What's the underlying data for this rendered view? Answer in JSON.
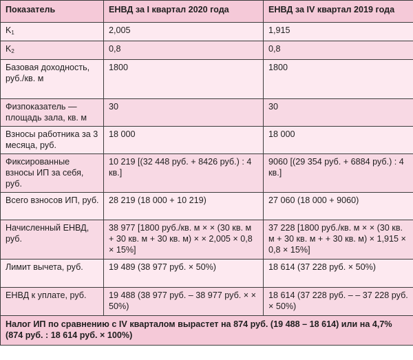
{
  "header": {
    "col1": "Показатель",
    "col2": "ЕНВД за I квартал 2020 года",
    "col3": "ЕНВД за IV квартал 2019 года"
  },
  "rows": [
    {
      "label": "K",
      "label_sub": "1",
      "q1_2020": "2,005",
      "q4_2019": "1,915"
    },
    {
      "label": "K",
      "label_sub": "2",
      "q1_2020": "0,8",
      "q4_2019": "0,8"
    },
    {
      "label": "Базовая доходность, руб./кв. м",
      "q1_2020": "1800",
      "q4_2019": "1800"
    },
    {
      "label": "Физпоказатель — площадь зала, кв. м",
      "q1_2020": "30",
      "q4_2019": "30"
    },
    {
      "label": "Взносы работника за 3 месяца, руб.",
      "q1_2020": "18 000",
      "q4_2019": "18 000"
    },
    {
      "label": "Фиксированные взносы ИП за себя, руб.",
      "q1_2020": "10 219 [(32 448 руб. + 8426 руб.) : 4 кв.]",
      "q4_2019": "9060 [(29 354 руб. + 6884 руб.) : 4 кв.]"
    },
    {
      "label": "Всего взносов ИП, руб.",
      "q1_2020": "28 219 (18 000 + 10 219)",
      "q4_2019": "27 060 (18 000 + 9060)"
    },
    {
      "label": "Начисленный ЕНВД, руб.",
      "q1_2020": "38 977 [1800 руб./кв. м × × (30 кв. м + 30 кв. м + 30 кв. м) × × 2,005 × 0,8 × 15%]",
      "q4_2019": "37 228 [1800 руб./кв. м × × (30 кв. м + 30 кв. м + + 30 кв. м) × 1,915 × 0,8 × 15%]"
    },
    {
      "label": "Лимит вычета, руб.",
      "q1_2020": "19 489 (38 977 руб. × 50%)",
      "q4_2019": "18 614 (37 228 руб. × 50%)"
    },
    {
      "label": "ЕНВД к уплате, руб.",
      "q1_2020": "19 488 (38 977 руб. – 38 977 руб. × × 50%)",
      "q4_2019": "18 614 (37 228 руб. – – 37 228 руб. × 50%)"
    }
  ],
  "footer": {
    "text": "Налог ИП по сравнению с IV кварталом вырастет на 874 руб. (19 488 – 18 614) или на 4,7% (874 руб. : 18 614 руб. × 100%)"
  }
}
